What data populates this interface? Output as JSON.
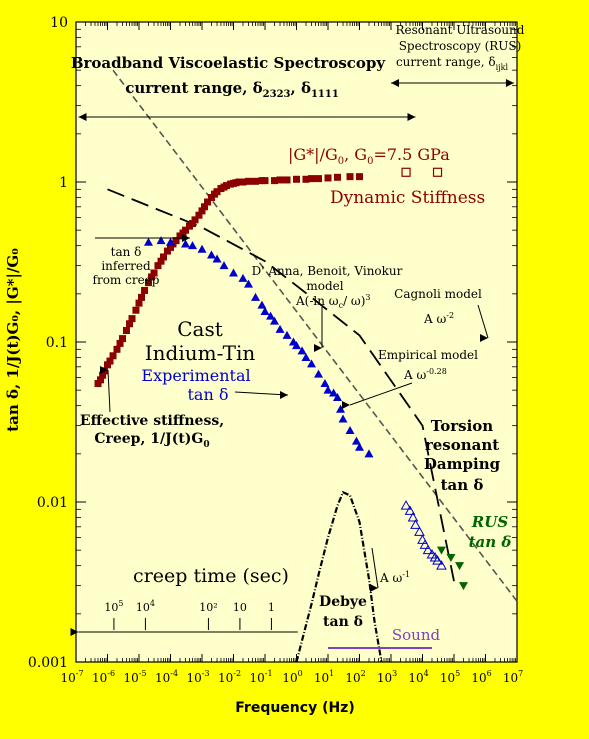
{
  "colors": {
    "background": "#ffff00",
    "plot_area": "#ffffcc",
    "dynamic_stiffness": "#8b0000",
    "experimental_tan_delta": "#0000cc",
    "rus_tan_delta": "#006400",
    "sound": "#8040c0"
  },
  "chart_data": {
    "type": "scatter",
    "xlabel": "Frequency (Hz)",
    "ylabel": "tan δ, 1/J(t)G₀, |G*|/G₀",
    "xscale": "log",
    "yscale": "log",
    "xlim": [
      1e-07,
      10000000.0
    ],
    "ylim": [
      0.001,
      10
    ],
    "grid": false,
    "x_tick_labels": [
      {
        "base": "10",
        "exp": "-7"
      },
      {
        "base": "10",
        "exp": "-6"
      },
      {
        "base": "10",
        "exp": "-5"
      },
      {
        "base": "10",
        "exp": "-4"
      },
      {
        "base": "10",
        "exp": "-3"
      },
      {
        "base": "10",
        "exp": "-2"
      },
      {
        "base": "10",
        "exp": "-1"
      },
      {
        "base": "10",
        "exp": "0"
      },
      {
        "base": "10",
        "exp": "1"
      },
      {
        "base": "10",
        "exp": "2"
      },
      {
        "base": "10",
        "exp": "3"
      },
      {
        "base": "10",
        "exp": "4"
      },
      {
        "base": "10",
        "exp": "5"
      },
      {
        "base": "10",
        "exp": "6"
      },
      {
        "base": "10",
        "exp": "7"
      }
    ],
    "y_tick_labels": [
      "0.001",
      "0.01",
      "0.1",
      "1",
      "10"
    ],
    "series": [
      {
        "name": "Dynamic Stiffness",
        "marker": "filled-square",
        "x": [
          5e-07,
          6e-07,
          7e-07,
          8e-07,
          1e-06,
          1.2e-06,
          1.5e-06,
          2e-06,
          2.5e-06,
          3e-06,
          4e-06,
          5e-06,
          6e-06,
          8e-06,
          1e-05,
          1.2e-05,
          1.5e-05,
          2e-05,
          2.5e-05,
          3e-05,
          4e-05,
          5e-05,
          6e-05,
          8e-05,
          0.0001,
          0.00012,
          0.00015,
          0.0002,
          0.00025,
          0.0003,
          0.0004,
          0.0005,
          0.0006,
          0.0008,
          0.001,
          0.0012,
          0.0015,
          0.002,
          0.0025,
          0.003,
          0.004,
          0.005,
          0.006,
          0.008,
          0.01,
          0.012,
          0.015,
          0.02,
          0.03,
          0.05,
          0.08,
          0.1,
          0.2,
          0.3,
          0.5,
          1,
          2,
          3,
          5,
          10,
          20,
          50,
          100
        ],
        "y": [
          0.055,
          0.058,
          0.062,
          0.066,
          0.072,
          0.076,
          0.082,
          0.09,
          0.098,
          0.105,
          0.118,
          0.13,
          0.14,
          0.158,
          0.175,
          0.19,
          0.21,
          0.235,
          0.255,
          0.27,
          0.3,
          0.32,
          0.34,
          0.37,
          0.39,
          0.41,
          0.43,
          0.46,
          0.48,
          0.5,
          0.53,
          0.55,
          0.58,
          0.62,
          0.66,
          0.7,
          0.75,
          0.8,
          0.84,
          0.87,
          0.91,
          0.93,
          0.95,
          0.97,
          0.98,
          0.99,
          1.0,
          1.0,
          1.01,
          1.01,
          1.02,
          1.02,
          1.02,
          1.03,
          1.03,
          1.04,
          1.04,
          1.05,
          1.05,
          1.06,
          1.07,
          1.08,
          1.08
        ]
      },
      {
        "name": "Dynamic Stiffness (RUS)",
        "marker": "open-square",
        "x": [
          3000,
          30000
        ],
        "y": [
          1.15,
          1.15
        ]
      },
      {
        "name": "Experimental tan δ",
        "marker": "filled-triangle",
        "x": [
          2e-05,
          5e-05,
          0.0001,
          0.0003,
          0.0005,
          0.001,
          0.002,
          0.003,
          0.005,
          0.01,
          0.02,
          0.03,
          0.05,
          0.08,
          0.1,
          0.15,
          0.2,
          0.3,
          0.5,
          0.8,
          1,
          1.5,
          2,
          3,
          5,
          8,
          10,
          15,
          20,
          25,
          30,
          50,
          80,
          100,
          200
        ],
        "y": [
          0.42,
          0.43,
          0.42,
          0.41,
          0.4,
          0.38,
          0.35,
          0.33,
          0.3,
          0.27,
          0.25,
          0.23,
          0.19,
          0.17,
          0.155,
          0.145,
          0.135,
          0.12,
          0.11,
          0.1,
          0.095,
          0.088,
          0.08,
          0.073,
          0.063,
          0.055,
          0.05,
          0.048,
          0.045,
          0.038,
          0.033,
          0.028,
          0.024,
          0.022,
          0.02
        ]
      },
      {
        "name": "Experimental tan δ (torsion resonant)",
        "marker": "open-triangle",
        "x": [
          3000,
          4000,
          5000,
          6000,
          8000,
          10000,
          12000,
          15000,
          20000,
          25000,
          30000,
          40000
        ],
        "y": [
          0.0095,
          0.0088,
          0.008,
          0.0072,
          0.0065,
          0.0058,
          0.0054,
          0.005,
          0.0047,
          0.0045,
          0.0043,
          0.004
        ]
      },
      {
        "name": "RUS tan δ",
        "marker": "filled-inverted-triangle",
        "x": [
          40000,
          80000,
          150000,
          200000
        ],
        "y": [
          0.005,
          0.0045,
          0.004,
          0.003
        ]
      }
    ],
    "curves": [
      {
        "name": "creep-fit",
        "style": "short-dash",
        "x": [
          1.5e-06,
          10000000
        ],
        "y": [
          5.0,
          0.0024
        ]
      },
      {
        "name": "empirical-model",
        "style": "long-dash",
        "x": [
          1e-06,
          0.001,
          0.1,
          3,
          100,
          10000,
          100000
        ],
        "y": [
          0.9,
          0.52,
          0.32,
          0.19,
          0.11,
          0.03,
          0.0032
        ]
      },
      {
        "name": "debye-peak",
        "style": "dash-dot",
        "x": [
          1,
          2,
          3,
          5,
          10,
          20,
          30,
          50,
          100,
          200,
          300,
          500
        ],
        "y": [
          0.001,
          0.0017,
          0.0023,
          0.0035,
          0.006,
          0.0095,
          0.0115,
          0.011,
          0.0075,
          0.0033,
          0.0018,
          0.001
        ]
      }
    ],
    "creep_time_ticks": [
      {
        "base": "10",
        "exp": "5",
        "x": 1.6e-06
      },
      {
        "base": "10",
        "exp": "4",
        "x": 1.6e-05
      },
      {
        "base": "10",
        "exp": "",
        "text": "10²",
        "x": 0.0016
      },
      {
        "base": "10",
        "exp": "",
        "text": "10",
        "x": 0.016
      },
      {
        "base": "1",
        "exp": "",
        "text": "1",
        "x": 0.16
      }
    ]
  },
  "annotations": {
    "bvs_line1": "Broadband Viscoelastic Spectroscopy",
    "bvs_line2": "current range, δ",
    "bvs_sub1": "2323",
    "bvs_comma": ", δ",
    "bvs_sub2": "1111",
    "rus_line1": "Resonant Ultrasound",
    "rus_line2": "Spectroscopy (RUS)",
    "rus_line3": "current range, δ",
    "rus_sub": "ijkl",
    "gstar_label": "|G*|/G",
    "gstar_sub": "0",
    "gstar_rest": ", G",
    "gstar_sub2": "0",
    "gstar_value": "=7.5 GPa",
    "dynamic_stiffness": "Dynamic Stiffness",
    "tan_inferred_1": "tan δ",
    "tan_inferred_2": "inferred",
    "tan_inferred_3": "from creep",
    "danna_1": "D' Anna, Benoit, Vinokur",
    "danna_2": "model",
    "danna_3": "A(-ln ω",
    "danna_sub": "c",
    "danna_4": "/ ω)",
    "danna_sup": "3",
    "cagnoli_1": "Cagnoli model",
    "cagnoli_2": "A ω",
    "cagnoli_sup": "-2",
    "cast_1": "Cast",
    "cast_2": "Indium-Tin",
    "experimental_1": "Experimental",
    "experimental_2": "tan δ",
    "empirical_1": "Empirical model",
    "empirical_2": "A  ω",
    "empirical_sup": "-0.28",
    "effective_1": "Effective stiffness,",
    "effective_2": "Creep, 1/J(t)G",
    "effective_sub": "0",
    "torsion_1": "Torsion",
    "torsion_2": "resonant",
    "torsion_3": "Damping",
    "torsion_4": "tan δ",
    "rus_tan_1": "RUS",
    "rus_tan_2": "tan δ",
    "debye_1": "Debye",
    "debye_2": "tan δ",
    "a_omega": "A ω",
    "a_omega_sup": "-1",
    "creep_time": "creep time (sec)",
    "sound": "Sound"
  }
}
